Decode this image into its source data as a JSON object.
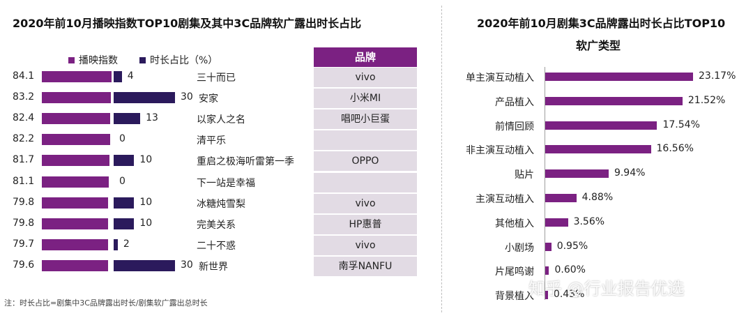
{
  "left": {
    "title": "2020年前10月播映指数TOP10剧集及其中3C品牌软广露出时长占比",
    "legend": [
      {
        "label": "播映指数",
        "color": "#7b2182"
      },
      {
        "label": "时长占比（%）",
        "color": "#2b1a5c"
      }
    ],
    "brand_header": "品牌",
    "chart_data": {
      "type": "bar",
      "categories": [
        "三十而已",
        "安家",
        "以家人之名",
        "清平乐",
        "重启之极海听雷第一季",
        "下一站是幸福",
        "冰糖炖雪梨",
        "完美关系",
        "二十不惑",
        "新世界"
      ],
      "series": [
        {
          "name": "播映指数",
          "values": [
            84.1,
            83.2,
            82.4,
            82.2,
            81.7,
            81.1,
            79.8,
            79.8,
            79.7,
            79.6
          ]
        },
        {
          "name": "时长占比（%）",
          "values": [
            4,
            30,
            13,
            0,
            10,
            0,
            10,
            10,
            2,
            30
          ]
        }
      ],
      "value_labels": [
        "84.1",
        "83.2",
        "82.4",
        "82.2",
        "81.7",
        "81.1",
        "79.8",
        "79.8",
        "79.7",
        "79.6"
      ],
      "share_labels": [
        "4",
        "30",
        "13",
        "0",
        "10",
        "0",
        "10",
        "10",
        "2",
        "30"
      ],
      "brands": [
        "vivo",
        "小米MI",
        "唱吧小巨蛋",
        "",
        "OPPO",
        "",
        "vivo",
        "HP惠普",
        "vivo",
        "南孚NANFU"
      ],
      "orientation": "horizontal",
      "legend_position": "top-left",
      "grid": false
    }
  },
  "right": {
    "title_line1": "2020年前10月剧集3C品牌露出时长占比TOP10",
    "title_line2": "软广类型",
    "chart_data": {
      "type": "bar",
      "orientation": "horizontal",
      "categories": [
        "单主演互动植入",
        "产品植入",
        "前情回顾",
        "非主演互动植入",
        "贴片",
        "主演互动植入",
        "其他植入",
        "小剧场",
        "片尾鸣谢",
        "背景植入"
      ],
      "values": [
        23.17,
        21.52,
        17.54,
        16.56,
        9.94,
        4.88,
        3.56,
        0.95,
        0.6,
        0.43
      ],
      "value_labels": [
        "23.17%",
        "21.52%",
        "17.54%",
        "16.56%",
        "9.94%",
        "4.88%",
        "3.56%",
        "0.95%",
        "0.60%",
        "0.43%"
      ],
      "color": "#7b2182",
      "grid": false
    }
  },
  "note": "注：时长占比=剧集中3C品牌露出时长/剧集软广露出总时长",
  "watermark": "知乎 @行业报告优选"
}
